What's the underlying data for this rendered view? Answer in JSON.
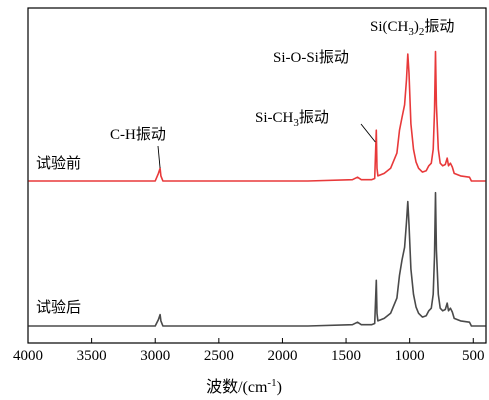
{
  "chart_data": {
    "type": "line",
    "title": "",
    "xlabel": "波数/(cm",
    "xlabel_sup": "-1",
    "xlabel_tail": ")",
    "ylabel": "",
    "xlim": [
      4000,
      400
    ],
    "x_ticks": [
      4000,
      3500,
      3000,
      2500,
      2000,
      1500,
      1000,
      500
    ],
    "x_tick_labels": [
      "4000",
      "3500",
      "3000",
      "2500",
      "2000",
      "1500",
      "1000",
      "500"
    ],
    "grid": false,
    "y_ticks_shown": false,
    "series": [
      {
        "name": "试验前",
        "color": "#e8393a",
        "offset": 1.0,
        "points": [
          [
            3995,
            0.0
          ],
          [
            3200,
            0.0
          ],
          [
            3000,
            0.0
          ],
          [
            2975,
            0.06
          ],
          [
            2962,
            0.1
          ],
          [
            2955,
            0.04
          ],
          [
            2940,
            0.0
          ],
          [
            1800,
            0.0
          ],
          [
            1450,
            0.01
          ],
          [
            1410,
            0.03
          ],
          [
            1380,
            0.01
          ],
          [
            1300,
            0.01
          ],
          [
            1275,
            0.02
          ],
          [
            1262,
            0.4
          ],
          [
            1257,
            0.1
          ],
          [
            1250,
            0.04
          ],
          [
            1200,
            0.06
          ],
          [
            1150,
            0.1
          ],
          [
            1100,
            0.22
          ],
          [
            1080,
            0.4
          ],
          [
            1060,
            0.5
          ],
          [
            1040,
            0.6
          ],
          [
            1025,
            0.8
          ],
          [
            1015,
            1.0
          ],
          [
            1005,
            0.85
          ],
          [
            990,
            0.45
          ],
          [
            970,
            0.25
          ],
          [
            950,
            0.15
          ],
          [
            930,
            0.1
          ],
          [
            900,
            0.07
          ],
          [
            870,
            0.08
          ],
          [
            850,
            0.12
          ],
          [
            830,
            0.14
          ],
          [
            815,
            0.25
          ],
          [
            805,
            0.55
          ],
          [
            797,
            1.02
          ],
          [
            790,
            0.6
          ],
          [
            775,
            0.25
          ],
          [
            760,
            0.14
          ],
          [
            740,
            0.12
          ],
          [
            720,
            0.13
          ],
          [
            705,
            0.18
          ],
          [
            695,
            0.12
          ],
          [
            680,
            0.14
          ],
          [
            665,
            0.11
          ],
          [
            650,
            0.06
          ],
          [
            600,
            0.04
          ],
          [
            530,
            0.03
          ],
          [
            515,
            0.0
          ],
          [
            405,
            0.0
          ]
        ]
      },
      {
        "name": "试验后",
        "color": "#4a4a4a",
        "offset": 0.0,
        "points": [
          [
            3995,
            0.0
          ],
          [
            3200,
            0.0
          ],
          [
            3000,
            0.0
          ],
          [
            2975,
            0.05
          ],
          [
            2962,
            0.09
          ],
          [
            2955,
            0.04
          ],
          [
            2940,
            0.0
          ],
          [
            1800,
            0.0
          ],
          [
            1450,
            0.01
          ],
          [
            1410,
            0.03
          ],
          [
            1380,
            0.01
          ],
          [
            1300,
            0.01
          ],
          [
            1275,
            0.02
          ],
          [
            1262,
            0.36
          ],
          [
            1257,
            0.1
          ],
          [
            1250,
            0.04
          ],
          [
            1200,
            0.06
          ],
          [
            1150,
            0.1
          ],
          [
            1100,
            0.22
          ],
          [
            1080,
            0.4
          ],
          [
            1060,
            0.52
          ],
          [
            1040,
            0.62
          ],
          [
            1025,
            0.82
          ],
          [
            1015,
            0.98
          ],
          [
            1005,
            0.8
          ],
          [
            990,
            0.45
          ],
          [
            970,
            0.25
          ],
          [
            950,
            0.15
          ],
          [
            930,
            0.1
          ],
          [
            900,
            0.07
          ],
          [
            870,
            0.08
          ],
          [
            850,
            0.12
          ],
          [
            830,
            0.14
          ],
          [
            815,
            0.25
          ],
          [
            805,
            0.55
          ],
          [
            797,
            1.05
          ],
          [
            790,
            0.6
          ],
          [
            775,
            0.25
          ],
          [
            760,
            0.14
          ],
          [
            740,
            0.12
          ],
          [
            720,
            0.13
          ],
          [
            705,
            0.18
          ],
          [
            695,
            0.12
          ],
          [
            680,
            0.14
          ],
          [
            665,
            0.11
          ],
          [
            650,
            0.06
          ],
          [
            600,
            0.04
          ],
          [
            530,
            0.03
          ],
          [
            515,
            0.0
          ],
          [
            405,
            0.0
          ]
        ]
      }
    ],
    "annotations": [
      {
        "id": "ch",
        "text": "C-H振动",
        "x": 2962
      },
      {
        "id": "sich3",
        "text_main": "Si-CH",
        "text_sub": "3",
        "text_tail": "振动",
        "x": 1262
      },
      {
        "id": "siosi",
        "text": "Si-O-Si振动",
        "x": 1015
      },
      {
        "id": "sich32",
        "text_main": "Si(CH",
        "text_sub": "3",
        "text_close": ")",
        "text_sub2": "2",
        "text_tail": "振动",
        "x": 797
      }
    ]
  }
}
